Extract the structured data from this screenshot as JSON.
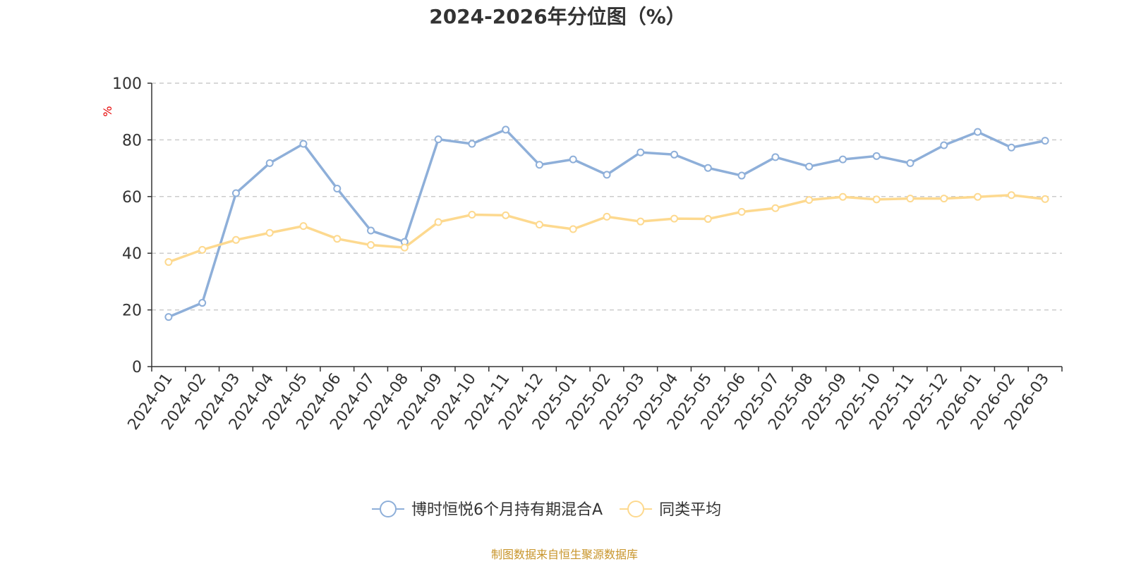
{
  "chart_data": {
    "type": "line",
    "title": "2024-2026年分位图（%）",
    "ylabel": "%",
    "ylim": [
      0,
      100
    ],
    "yticks": [
      "0",
      "20",
      "40",
      "60",
      "80",
      "100"
    ],
    "grid": true,
    "legend_position": "bottom",
    "categories": [
      "2024-01",
      "2024-02",
      "2024-03",
      "2024-04",
      "2024-05",
      "2024-06",
      "2024-07",
      "2024-08",
      "2024-09",
      "2024-10",
      "2024-11",
      "2024-12",
      "2025-01",
      "2025-02",
      "2025-03",
      "2025-04",
      "2025-05",
      "2025-06",
      "2025-07",
      "2025-08",
      "2025-09",
      "2025-10",
      "2025-11",
      "2025-12",
      "2026-01",
      "2026-02",
      "2026-03"
    ],
    "series": [
      {
        "name": "博时恒悦6个月持有期混合A",
        "color": "#8eafd9",
        "values": [
          17.5,
          22.5,
          61.2,
          71.8,
          78.6,
          62.8,
          48.0,
          44.0,
          80.2,
          78.6,
          83.6,
          71.2,
          73.1,
          67.7,
          75.6,
          74.8,
          70.1,
          67.4,
          73.9,
          70.6,
          73.1,
          74.3,
          71.8,
          78.1,
          82.8,
          77.3,
          79.7
        ]
      },
      {
        "name": "同类平均",
        "color": "#fdd98f",
        "values": [
          36.9,
          41.2,
          44.7,
          47.2,
          49.6,
          45.1,
          42.9,
          42.0,
          51.0,
          53.6,
          53.4,
          50.1,
          48.5,
          52.9,
          51.2,
          52.2,
          52.1,
          54.6,
          55.9,
          58.8,
          59.9,
          59.0,
          59.3,
          59.3,
          59.9,
          60.5,
          59.1
        ]
      }
    ]
  },
  "source_note": "制图数据来自恒生聚源数据库",
  "colors": {
    "axis": "#333333",
    "grid": "#cccccc",
    "unit": "#e60000",
    "source": "#c8952b"
  }
}
